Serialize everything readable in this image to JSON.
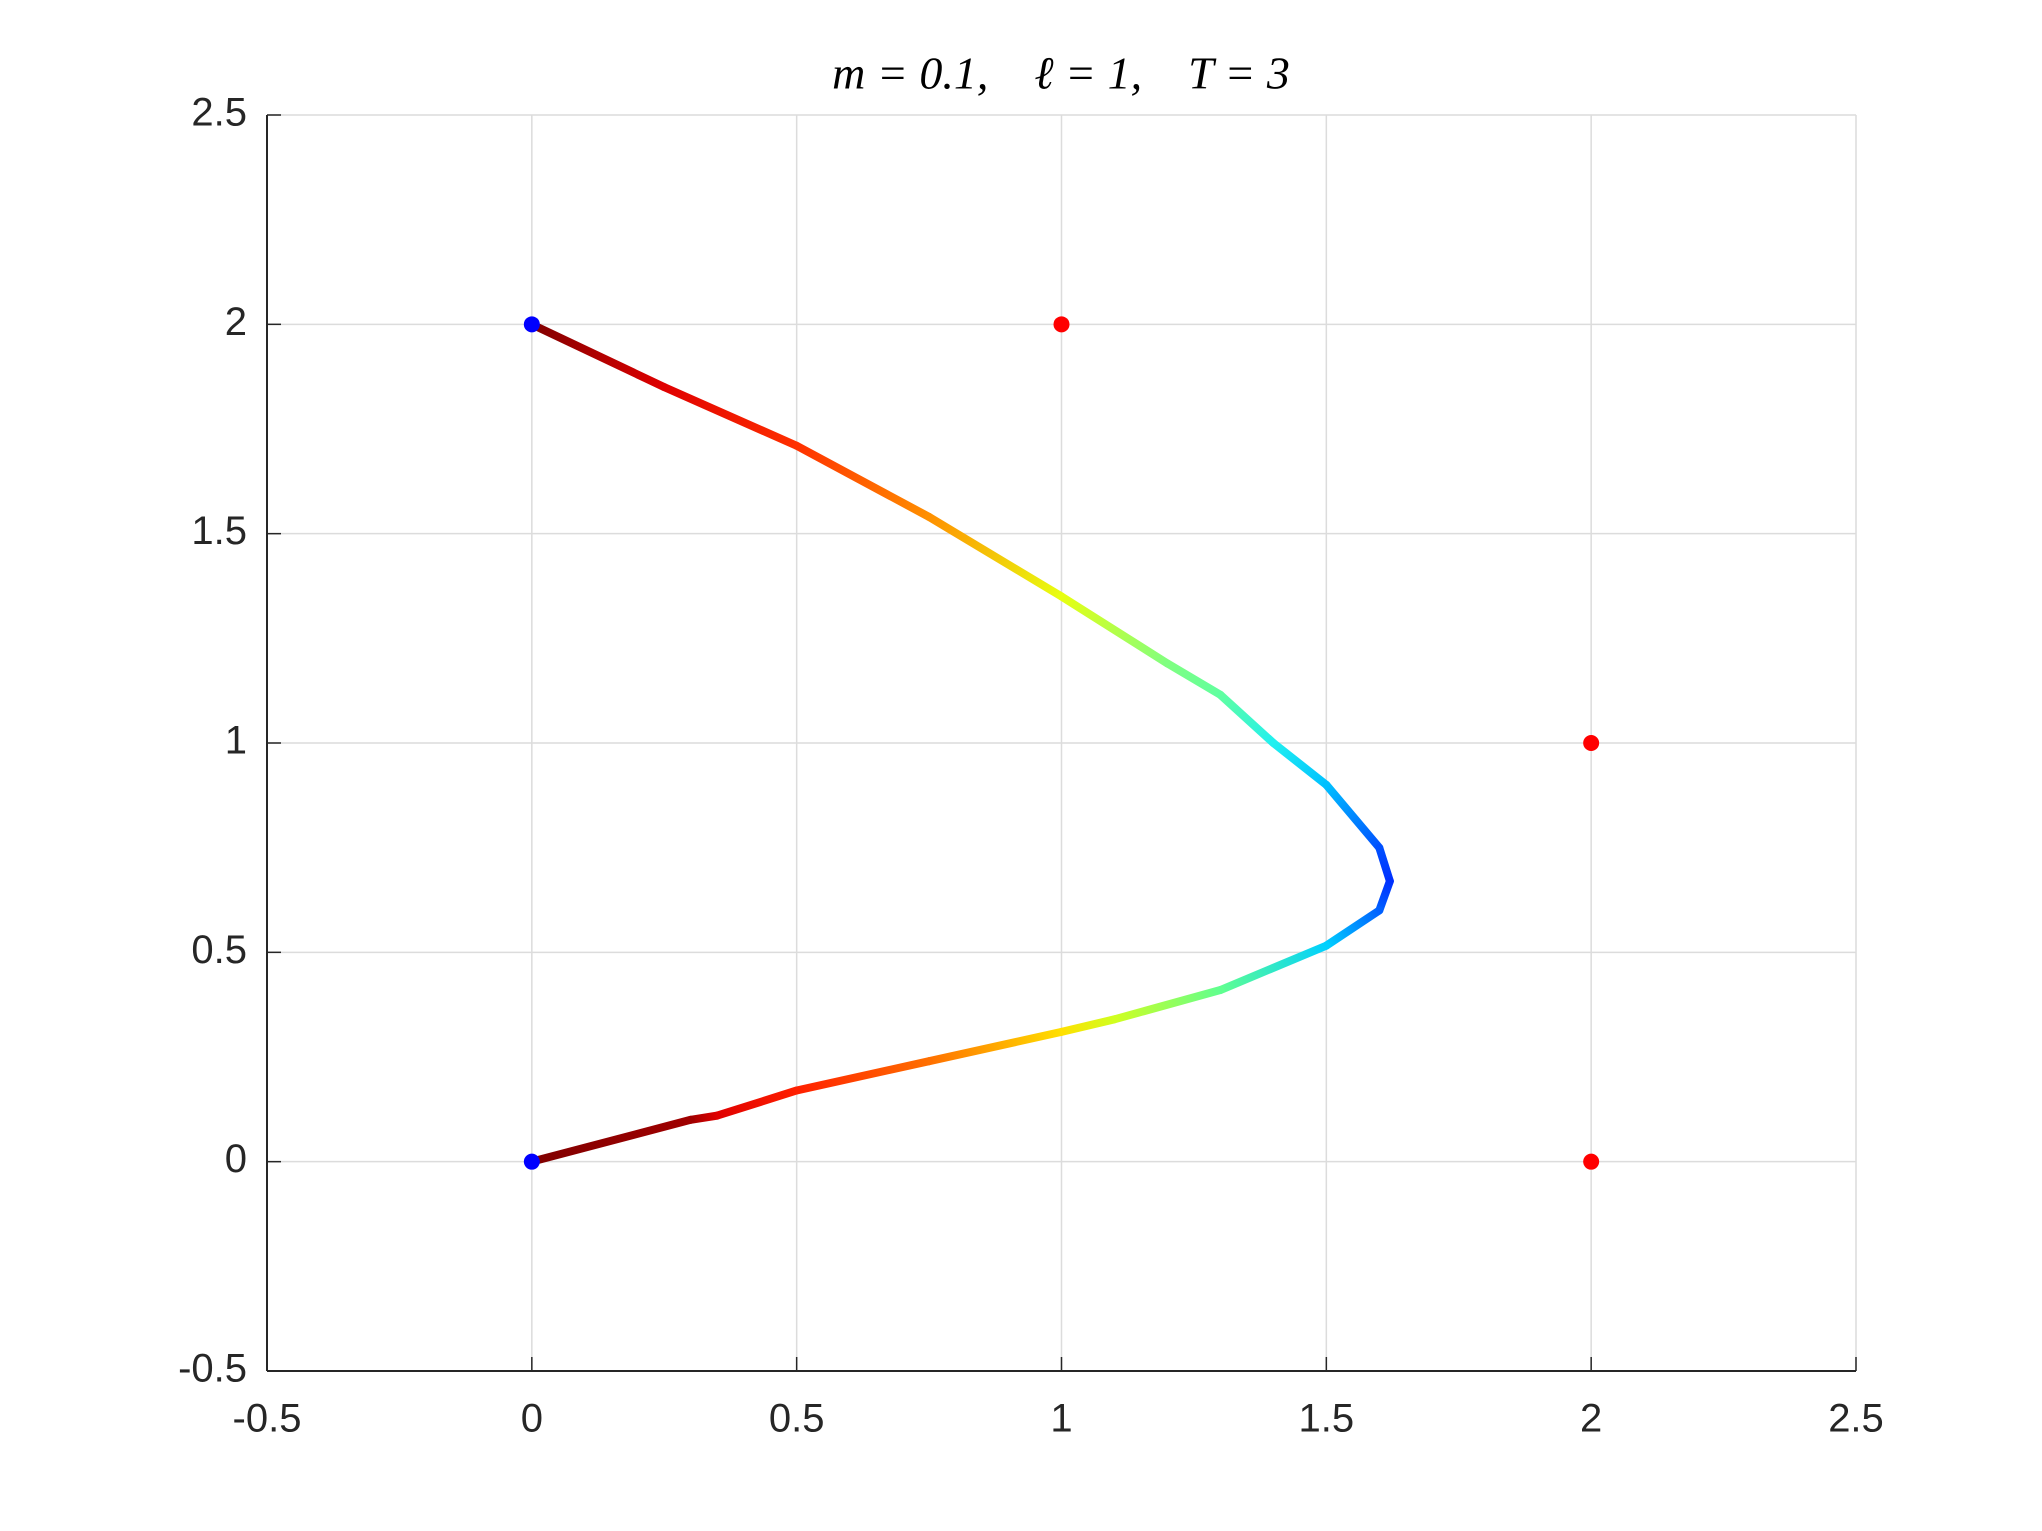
{
  "chart_data": {
    "type": "line",
    "title": "m = 0.1,    ℓ = 1,    T = 3",
    "xlim": [
      -0.5,
      2.5
    ],
    "ylim": [
      -0.5,
      2.5
    ],
    "xticks": [
      -0.5,
      0,
      0.5,
      1,
      1.5,
      2,
      2.5
    ],
    "yticks": [
      -0.5,
      0,
      0.5,
      1,
      1.5,
      2,
      2.5
    ],
    "grid": true,
    "series": [
      {
        "x": [
          0,
          0.25,
          0.5,
          0.75,
          1,
          1.2,
          1.3,
          1.4,
          1.5,
          1.6,
          1.62,
          1.6,
          1.5,
          1.3,
          1.1,
          1,
          0.75,
          0.5,
          0.35,
          0.3,
          0
        ],
        "y": [
          2,
          1.85,
          1.71,
          1.54,
          1.35,
          1.19,
          1.115,
          1.0,
          0.9,
          0.75,
          0.67,
          0.6,
          0.516,
          0.41,
          0.34,
          0.31,
          0.24,
          0.17,
          0.11,
          0.1,
          0
        ],
        "colors": [
          "#800000",
          "#e00000",
          "#ff3000",
          "#ff9000",
          "#e8ff10",
          "#80ff80",
          "#60ffa0",
          "#20f0f0",
          "#00c0ff",
          "#0050ff",
          "#0030ff",
          "#0060ff",
          "#00d0ff",
          "#60ff90",
          "#d0ff20",
          "#ffe000",
          "#ff7000",
          "#ff2000",
          "#e00000",
          "#a00000",
          "#800000"
        ]
      },
      {
        "x": [
          0,
          0
        ],
        "y": [
          2,
          0
        ],
        "color": "#0000ff",
        "marker": "dot"
      },
      {
        "x": [
          1,
          2,
          2
        ],
        "y": [
          2,
          1,
          0
        ],
        "color": "#ff0000",
        "marker": "dot"
      }
    ]
  }
}
